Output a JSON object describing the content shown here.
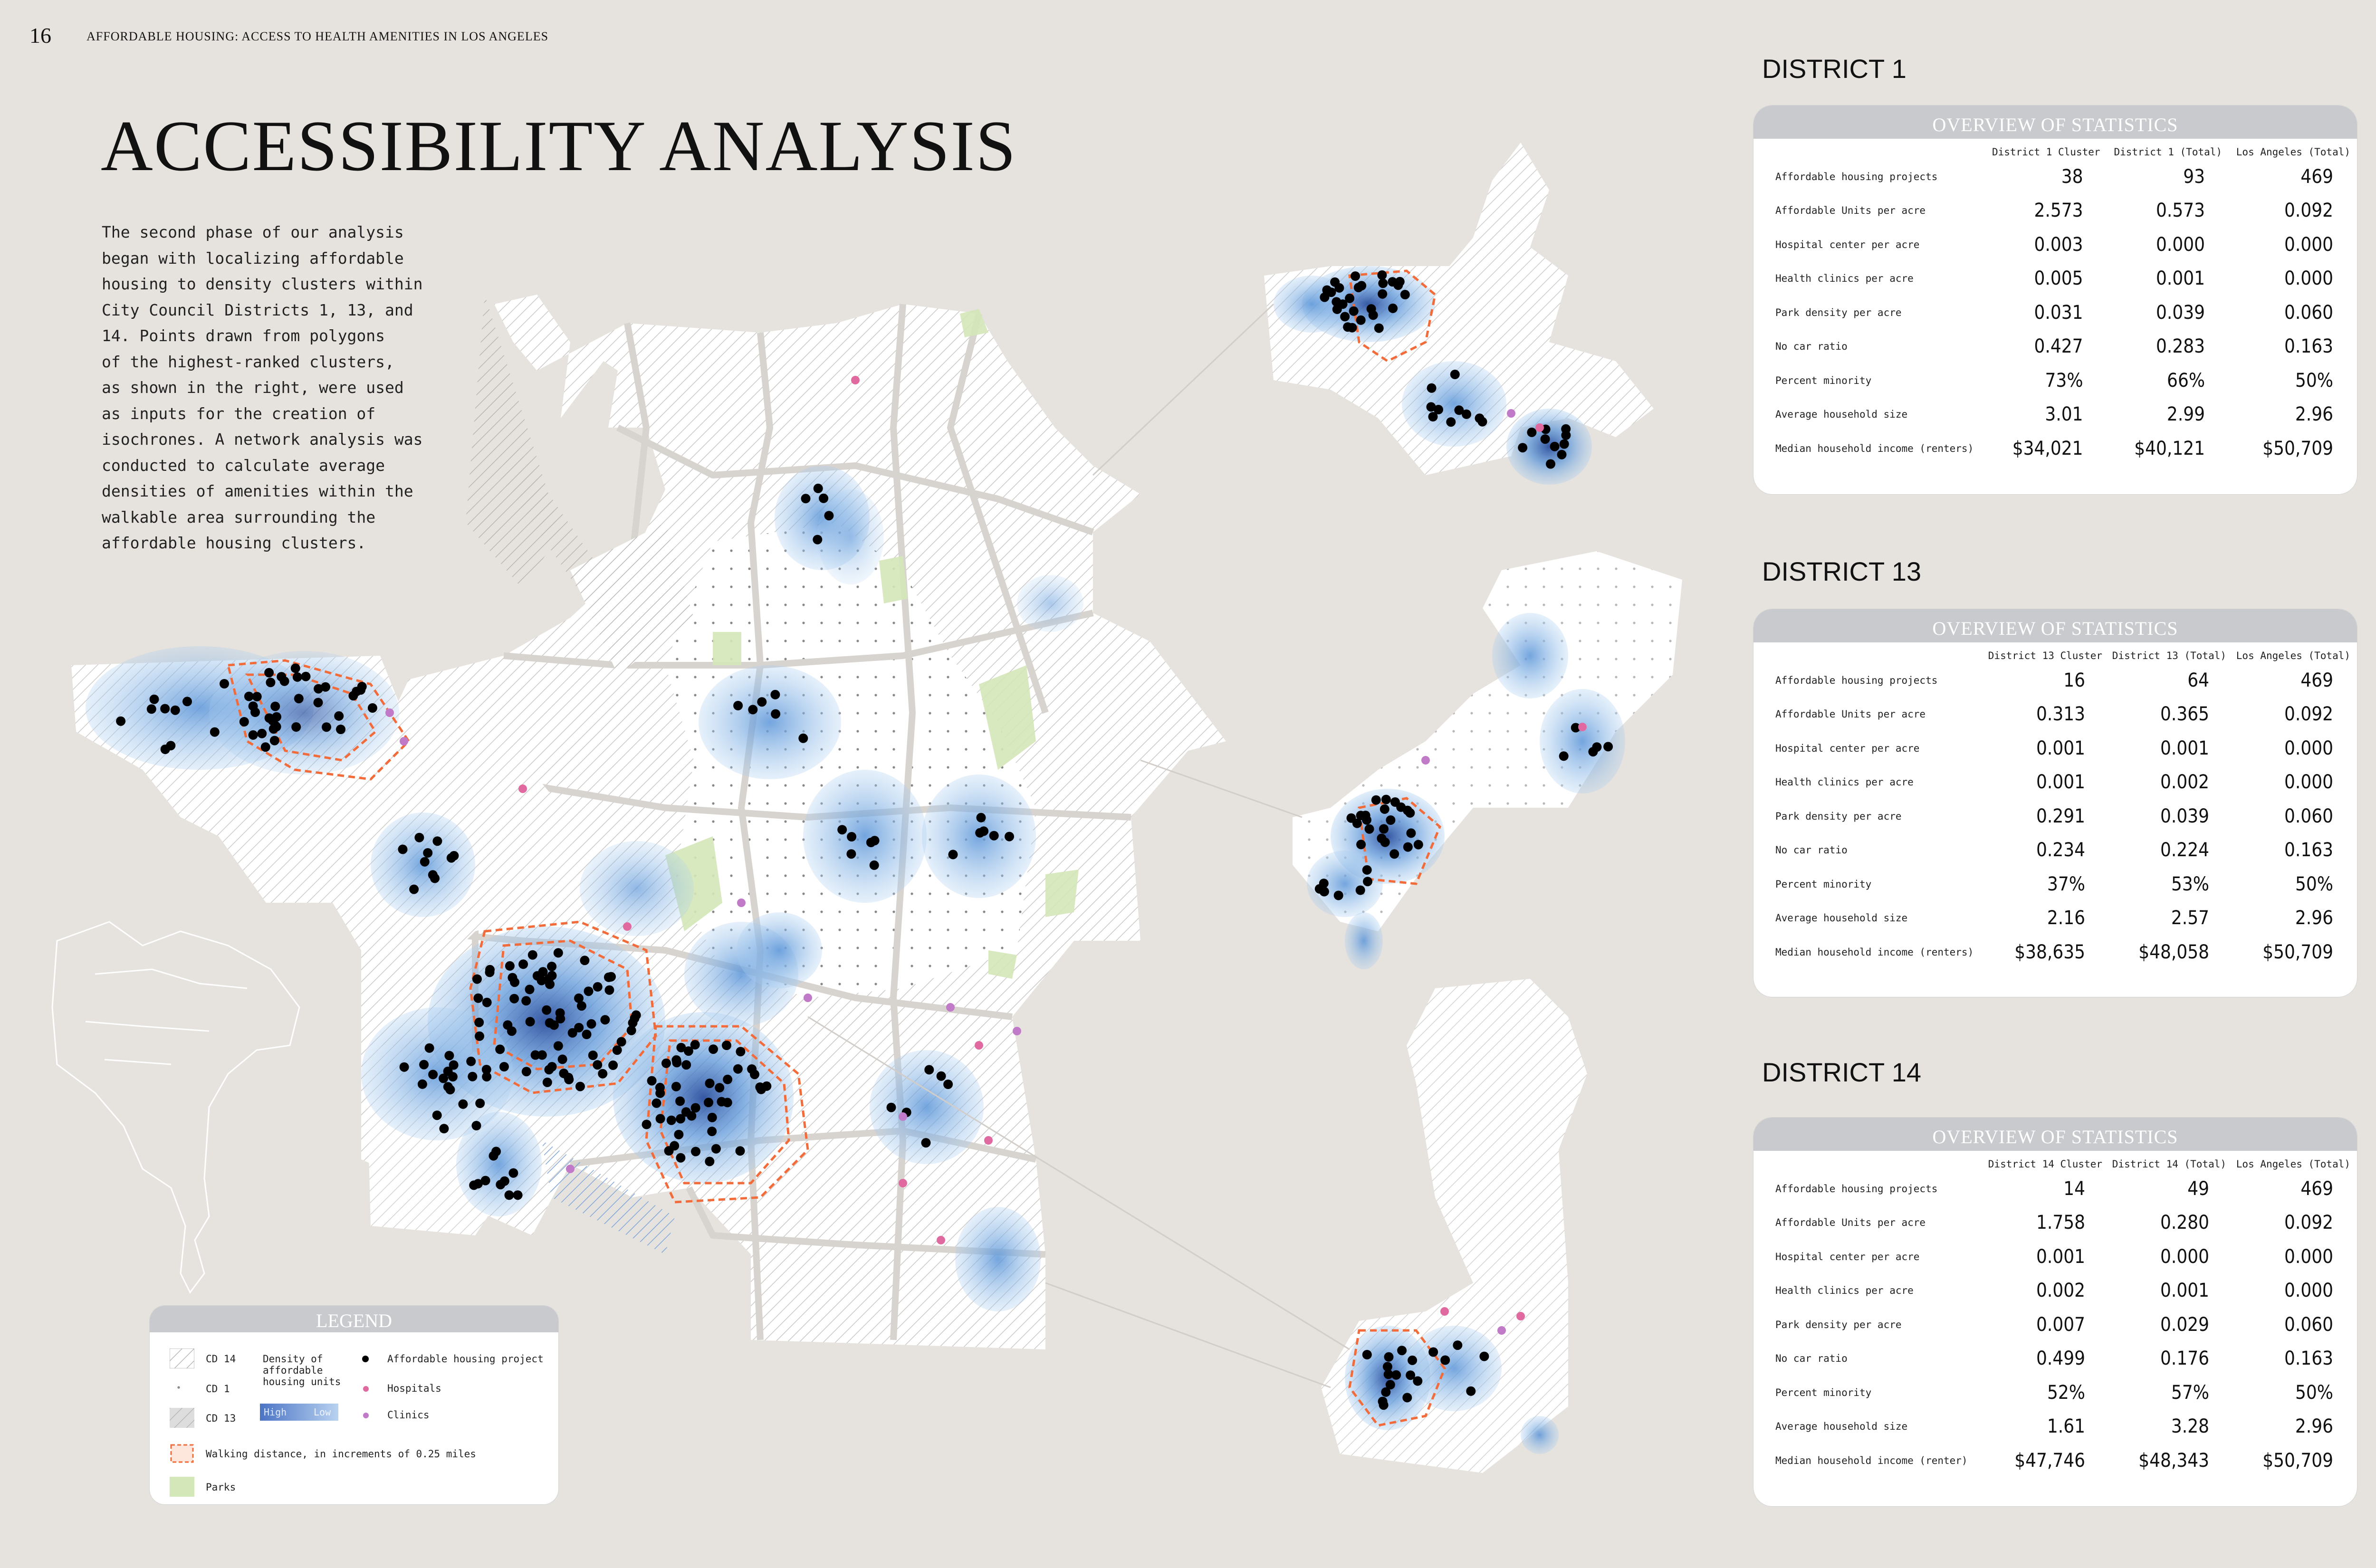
{
  "header": {
    "page_number": "16",
    "running_head": "AFFORDABLE HOUSING: ACCESS TO HEALTH AMENITIES IN LOS ANGELES",
    "title": "ACCESSIBILITY ANALYSIS"
  },
  "intro_lines": [
    "The second phase of our analysis",
    "began with localizing affordable",
    "housing to density clusters within",
    "City Council Districts 1, 13, and",
    "14. Points drawn from polygons",
    "of the highest-ranked clusters,",
    "as shown in the right, were used",
    "as inputs for the creation of",
    "isochrones. A network analysis was",
    "conducted to calculate average",
    "densities of amenities within the",
    "walkable area surrounding the",
    "affordable housing clusters."
  ],
  "legend": {
    "title": "LEGEND",
    "cd14": "CD 14",
    "cd1": "CD 1",
    "cd13": "CD 13",
    "density_line1": "Density of",
    "density_line2": "affordable",
    "density_line3": "housing units",
    "high": "High",
    "low": "Low",
    "housing_project": "Affordable housing project",
    "hospitals": "Hospitals",
    "clinics": "Clinics",
    "walking": "Walking distance, in increments of 0.25 miles",
    "parks": "Parks"
  },
  "panels": [
    {
      "district_title": "DISTRICT 1",
      "header": "OVERVIEW OF STATISTICS",
      "columns": [
        "District 1 Cluster",
        "District 1 (Total)",
        "Los Angeles (Total)"
      ],
      "rows": [
        {
          "label": "Affordable housing projects",
          "values": [
            "38",
            "93",
            "469"
          ]
        },
        {
          "label": "Affordable Units per acre",
          "values": [
            "2.573",
            "0.573",
            "0.092"
          ]
        },
        {
          "label": "Hospital center per acre",
          "values": [
            "0.003",
            "0.000",
            "0.000"
          ]
        },
        {
          "label": "Health clinics per acre",
          "values": [
            "0.005",
            "0.001",
            "0.000"
          ]
        },
        {
          "label": "Park density per acre",
          "values": [
            "0.031",
            "0.039",
            "0.060"
          ]
        },
        {
          "label": "No car ratio",
          "values": [
            "0.427",
            "0.283",
            "0.163"
          ]
        },
        {
          "label": "Percent minority",
          "values": [
            "73%",
            "66%",
            "50%"
          ]
        },
        {
          "label": "Average household size",
          "values": [
            "3.01",
            "2.99",
            "2.96"
          ]
        },
        {
          "label": "Median household income (renters)",
          "values": [
            "$34,021",
            "$40,121",
            "$50,709"
          ]
        }
      ]
    },
    {
      "district_title": "DISTRICT 13",
      "header": "OVERVIEW OF STATISTICS",
      "columns": [
        "District 13 Cluster",
        "District 13 (Total)",
        "Los Angeles (Total)"
      ],
      "rows": [
        {
          "label": "Affordable housing projects",
          "values": [
            "16",
            "64",
            "469"
          ]
        },
        {
          "label": "Affordable Units per acre",
          "values": [
            "0.313",
            "0.365",
            "0.092"
          ]
        },
        {
          "label": "Hospital center per acre",
          "values": [
            "0.001",
            "0.001",
            "0.000"
          ]
        },
        {
          "label": "Health clinics per acre",
          "values": [
            "0.001",
            "0.002",
            "0.000"
          ]
        },
        {
          "label": "Park density per acre",
          "values": [
            "0.291",
            "0.039",
            "0.060"
          ]
        },
        {
          "label": "No car ratio",
          "values": [
            "0.234",
            "0.224",
            "0.163"
          ]
        },
        {
          "label": "Percent minority",
          "values": [
            "37%",
            "53%",
            "50%"
          ]
        },
        {
          "label": "Average household size",
          "values": [
            "2.16",
            "2.57",
            "2.96"
          ]
        },
        {
          "label": "Median household income (renters)",
          "values": [
            "$38,635",
            "$48,058",
            "$50,709"
          ]
        }
      ]
    },
    {
      "district_title": "DISTRICT 14",
      "header": "OVERVIEW OF STATISTICS",
      "columns": [
        "District 14 Cluster",
        "District 14 (Total)",
        "Los Angeles (Total)"
      ],
      "rows": [
        {
          "label": "Affordable housing projects",
          "values": [
            "14",
            "49",
            "469"
          ]
        },
        {
          "label": "Affordable Units per acre",
          "values": [
            "1.758",
            "0.280",
            "0.092"
          ]
        },
        {
          "label": "Hospital center per acre",
          "values": [
            "0.001",
            "0.000",
            "0.000"
          ]
        },
        {
          "label": "Health clinics per acre",
          "values": [
            "0.002",
            "0.001",
            "0.000"
          ]
        },
        {
          "label": "Park density per acre",
          "values": [
            "0.007",
            "0.029",
            "0.060"
          ]
        },
        {
          "label": "No car ratio",
          "values": [
            "0.499",
            "0.176",
            "0.163"
          ]
        },
        {
          "label": "Percent minority",
          "values": [
            "52%",
            "57%",
            "50%"
          ]
        },
        {
          "label": "Average household size",
          "values": [
            "1.61",
            "3.28",
            "2.96"
          ]
        },
        {
          "label": "Median household income (renter)",
          "values": [
            "$47,746",
            "$48,343",
            "$50,709"
          ]
        }
      ]
    }
  ],
  "colors": {
    "background": "#e6e2dd",
    "density_dark": "#2c5aa8",
    "density_light": "#a9cdf0",
    "walking_line": "#f26b3a",
    "hospital": "#e06aa0",
    "clinic": "#c07ac8",
    "park": "#d4e7b8",
    "project": "#000000"
  }
}
